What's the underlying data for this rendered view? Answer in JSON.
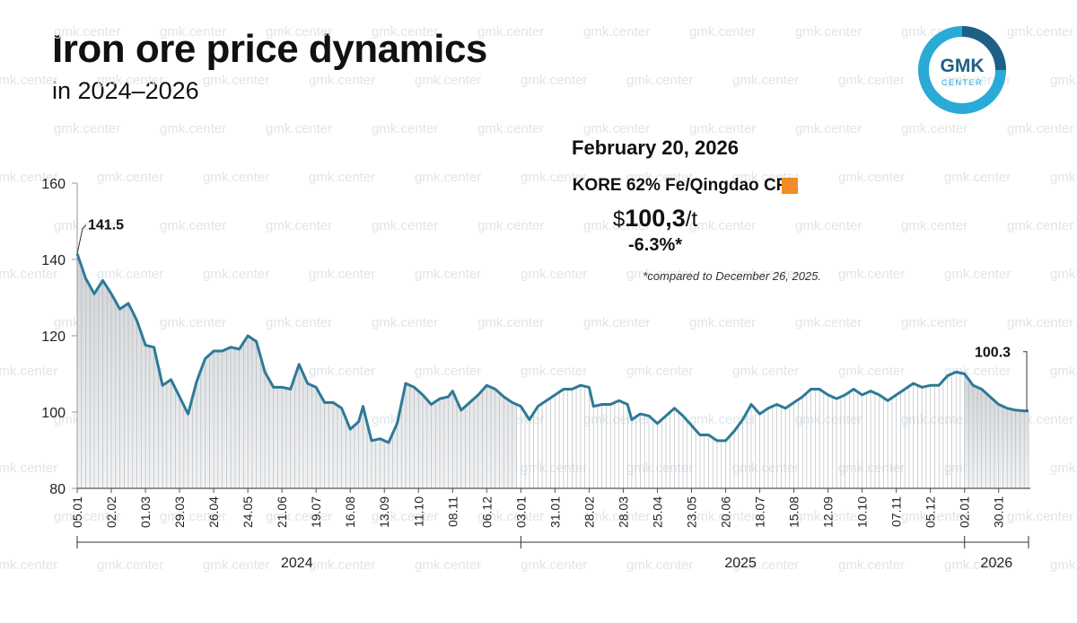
{
  "header": {
    "title": "Iron ore price dynamics",
    "subtitle": "in 2024–2026"
  },
  "logo": {
    "text_top": "GMK",
    "text_bottom": "CENTER"
  },
  "watermark": "gmk.center",
  "info": {
    "date": "February 20, 2026",
    "source": "KORE 62% Fe/Qingdao CFR",
    "price_prefix": "$",
    "price_value": "100,3",
    "price_unit": "/t",
    "change": "-6.3%*",
    "note": "*compared to December 26, 2025."
  },
  "colors": {
    "line": "#2E7A96",
    "accent": "#2AAAD6",
    "swatch": "#F28C28"
  },
  "chart_data": {
    "type": "area",
    "title": "Iron ore price dynamics",
    "ylabel": "",
    "xlabel": "",
    "ylim": [
      80,
      160
    ],
    "yticks": [
      80,
      100,
      120,
      140,
      160
    ],
    "x_tick_labels": [
      "05.01",
      "02.02",
      "01.03",
      "29.03",
      "26.04",
      "24.05",
      "21.06",
      "19.07",
      "16.08",
      "13.09",
      "11.10",
      "08.11",
      "06.12",
      "03.01",
      "31.01",
      "28.02",
      "28.03",
      "25.04",
      "23.05",
      "20.06",
      "18.07",
      "15.08",
      "12.09",
      "10.10",
      "07.11",
      "05.12",
      "02.01",
      "30.01"
    ],
    "x_tick_index": [
      0,
      8,
      16,
      24,
      32,
      40,
      48,
      56,
      64,
      72,
      80,
      88,
      96,
      104,
      112,
      120,
      128,
      136,
      144,
      152,
      160,
      168,
      176,
      184,
      192,
      200,
      208,
      216
    ],
    "years": [
      {
        "label": "2024",
        "start": 0,
        "end": 103
      },
      {
        "label": "2025",
        "start": 104,
        "end": 207
      },
      {
        "label": "2026",
        "start": 208,
        "end": 223
      }
    ],
    "annotations": [
      {
        "label": "141.5",
        "index": 0,
        "value": 141.5
      },
      {
        "label": "100.3",
        "index": 223,
        "value": 100.3
      }
    ],
    "anchors": [
      [
        0,
        141.5
      ],
      [
        2,
        135
      ],
      [
        4,
        131
      ],
      [
        6,
        134.5
      ],
      [
        8,
        131
      ],
      [
        10,
        127
      ],
      [
        12,
        128.5
      ],
      [
        14,
        124
      ],
      [
        16,
        117.5
      ],
      [
        18,
        117
      ],
      [
        20,
        107
      ],
      [
        22,
        108.5
      ],
      [
        24,
        104
      ],
      [
        26,
        99.5
      ],
      [
        28,
        108
      ],
      [
        30,
        114
      ],
      [
        32,
        116
      ],
      [
        34,
        116
      ],
      [
        36,
        117
      ],
      [
        38,
        116.5
      ],
      [
        40,
        120
      ],
      [
        42,
        118.5
      ],
      [
        44,
        110.5
      ],
      [
        46,
        106.5
      ],
      [
        48,
        106.5
      ],
      [
        50,
        106
      ],
      [
        52,
        112.5
      ],
      [
        54,
        107.5
      ],
      [
        56,
        106.5
      ],
      [
        58,
        102.5
      ],
      [
        60,
        102.5
      ],
      [
        62,
        101
      ],
      [
        64,
        95.5
      ],
      [
        66,
        97.5
      ],
      [
        67,
        101.5
      ],
      [
        69,
        92.5
      ],
      [
        71,
        93
      ],
      [
        73,
        92
      ],
      [
        75,
        97
      ],
      [
        77,
        107.5
      ],
      [
        79,
        106.5
      ],
      [
        81,
        104.5
      ],
      [
        83,
        102
      ],
      [
        85,
        103.5
      ],
      [
        87,
        104
      ],
      [
        88,
        105.5
      ],
      [
        90,
        100.5
      ],
      [
        92,
        102.5
      ],
      [
        94,
        104.5
      ],
      [
        96,
        107
      ],
      [
        98,
        106
      ],
      [
        100,
        104
      ],
      [
        102,
        102.5
      ],
      [
        104,
        101.5
      ],
      [
        106,
        98
      ],
      [
        108,
        101.5
      ],
      [
        110,
        103
      ],
      [
        112,
        104.5
      ],
      [
        114,
        106
      ],
      [
        116,
        106
      ],
      [
        118,
        107
      ],
      [
        120,
        106.5
      ],
      [
        121,
        101.5
      ],
      [
        123,
        102
      ],
      [
        125,
        102
      ],
      [
        127,
        103
      ],
      [
        129,
        102
      ],
      [
        130,
        98
      ],
      [
        132,
        99.5
      ],
      [
        134,
        99
      ],
      [
        136,
        97
      ],
      [
        138,
        99
      ],
      [
        140,
        101
      ],
      [
        142,
        99
      ],
      [
        144,
        96.5
      ],
      [
        146,
        94
      ],
      [
        148,
        94
      ],
      [
        150,
        92.5
      ],
      [
        152,
        92.5
      ],
      [
        154,
        95
      ],
      [
        156,
        98
      ],
      [
        158,
        102
      ],
      [
        160,
        99.5
      ],
      [
        162,
        101
      ],
      [
        164,
        102
      ],
      [
        166,
        101
      ],
      [
        168,
        102.5
      ],
      [
        170,
        104
      ],
      [
        172,
        106
      ],
      [
        174,
        106
      ],
      [
        176,
        104.5
      ],
      [
        178,
        103.5
      ],
      [
        180,
        104.5
      ],
      [
        182,
        106
      ],
      [
        184,
        104.5
      ],
      [
        186,
        105.5
      ],
      [
        188,
        104.5
      ],
      [
        190,
        103
      ],
      [
        192,
        104.5
      ],
      [
        194,
        106
      ],
      [
        196,
        107.5
      ],
      [
        198,
        106.5
      ],
      [
        200,
        107
      ],
      [
        202,
        107
      ],
      [
        204,
        109.5
      ],
      [
        206,
        110.5
      ],
      [
        208,
        110
      ],
      [
        210,
        107
      ],
      [
        212,
        106
      ],
      [
        214,
        104
      ],
      [
        216,
        102
      ],
      [
        218,
        101
      ],
      [
        220,
        100.5
      ],
      [
        222,
        100.3
      ],
      [
        223,
        100.3
      ]
    ]
  }
}
